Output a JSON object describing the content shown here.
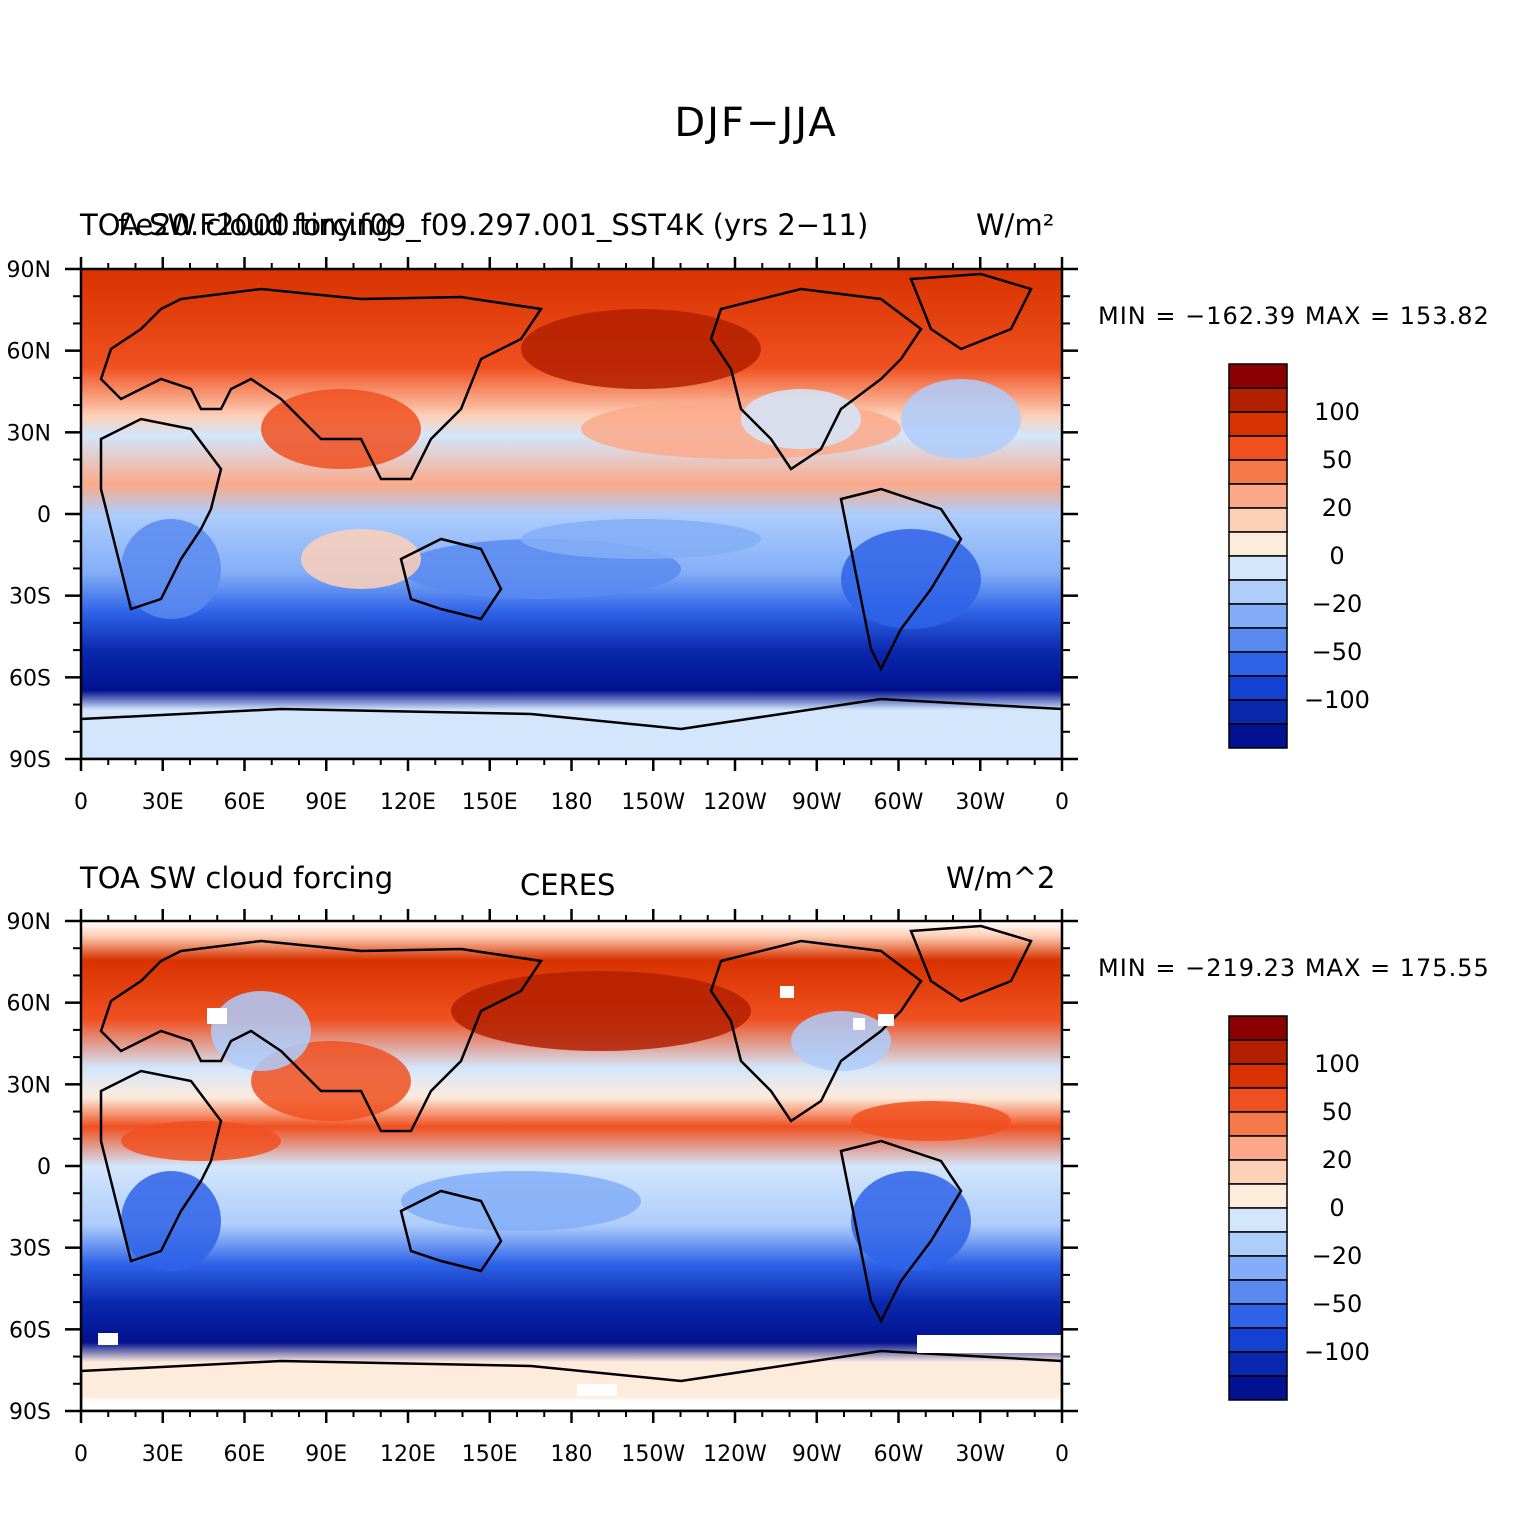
{
  "figure": {
    "title": "DJF−JJA"
  },
  "panels": [
    {
      "left_title": "TOA SW cloud forcing",
      "center_title": "f.e20.F2000.tiny.f09_f09.297.001_SST4K (yrs 2−11)",
      "right_title": "W/m²",
      "min_max": "MIN = −162.39  MAX = 153.82"
    },
    {
      "left_title": "TOA SW cloud forcing",
      "center_title": "CERES",
      "right_title": "W/m^2",
      "min_max": "MIN = −219.23  MAX = 175.55"
    }
  ],
  "chart_data": {
    "type": "heatmap",
    "x_ticks": [
      "0",
      "30E",
      "60E",
      "90E",
      "120E",
      "150E",
      "180",
      "150W",
      "120W",
      "90W",
      "60W",
      "30W",
      "0"
    ],
    "y_ticks": [
      "90N",
      "60N",
      "30N",
      "0",
      "30S",
      "60S",
      "90S"
    ],
    "xlim": [
      0,
      360
    ],
    "ylim": [
      -90,
      90
    ],
    "colorbar": {
      "labels": [
        "100",
        "50",
        "20",
        "0",
        "−20",
        "−50",
        "−100"
      ],
      "colors": [
        "#8b0000",
        "#b32000",
        "#d83200",
        "#f05020",
        "#f57a4a",
        "#fba98a",
        "#fdd0b8",
        "#fdebdc",
        "#d3e6fb",
        "#aecdfb",
        "#83aef7",
        "#5a8af0",
        "#2f63e8",
        "#1342d2",
        "#0a28ad",
        "#02118f"
      ]
    },
    "colors": {
      "land_outline": "#000000"
    }
  }
}
